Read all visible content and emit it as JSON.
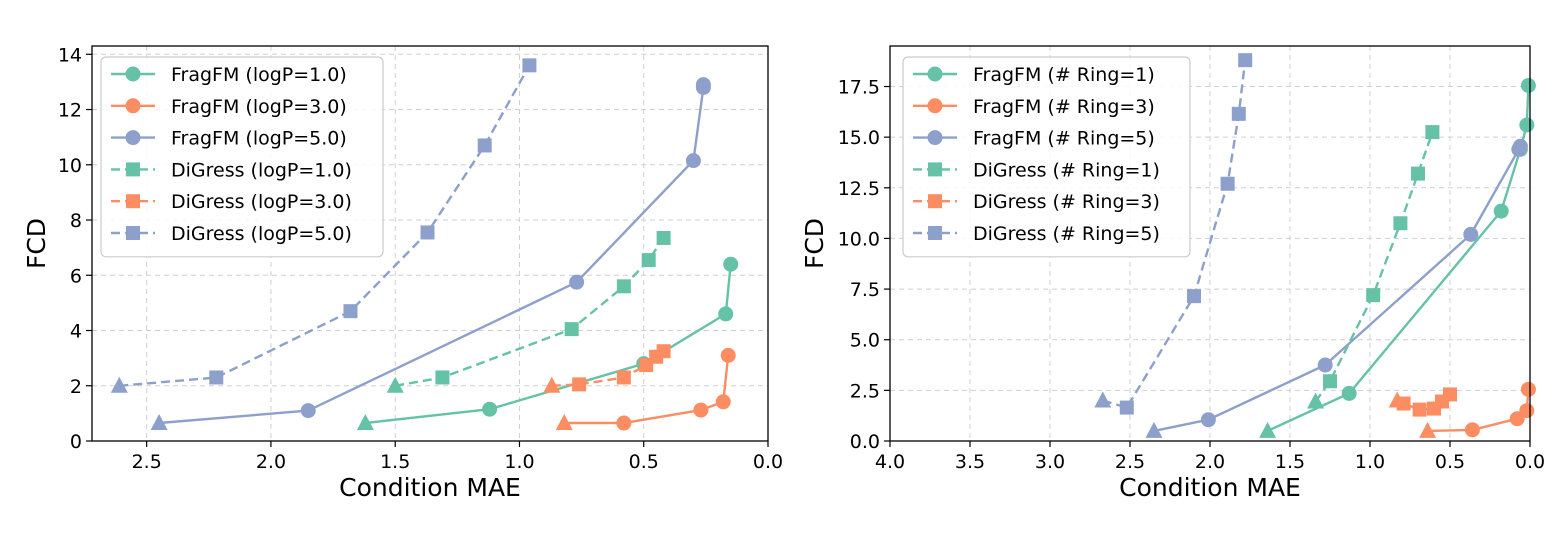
{
  "colors": {
    "green": "#66c2a5",
    "orange": "#fc8d62",
    "blue": "#8da0cb"
  },
  "chart_data": [
    {
      "type": "line",
      "xlabel": "Condition MAE",
      "ylabel": "FCD",
      "xlim": [
        2.72,
        0.0
      ],
      "ylim": [
        0,
        14.3
      ],
      "x_reversed": true,
      "xticks": [
        2.5,
        2.0,
        1.5,
        1.0,
        0.5,
        0.0
      ],
      "xtick_labels": [
        "2.5",
        "2.0",
        "1.5",
        "1.0",
        "0.5",
        "0.0"
      ],
      "yticks": [
        0,
        2,
        4,
        6,
        8,
        10,
        12,
        14
      ],
      "ytick_labels": [
        "0",
        "2",
        "4",
        "6",
        "8",
        "10",
        "12",
        "14"
      ],
      "grid": true,
      "legend_position": "top-left",
      "series": [
        {
          "name": "FragFM (logP=1.0)",
          "color": "#66c2a5",
          "marker": "circle",
          "dash": "solid",
          "start_marker": "triangle",
          "points": [
            [
              1.62,
              0.65
            ],
            [
              1.12,
              1.15
            ],
            [
              0.5,
              2.8
            ],
            [
              0.17,
              4.6
            ],
            [
              0.15,
              6.4
            ]
          ]
        },
        {
          "name": "FragFM (logP=3.0)",
          "color": "#fc8d62",
          "marker": "circle",
          "dash": "solid",
          "start_marker": "triangle",
          "points": [
            [
              0.82,
              0.65
            ],
            [
              0.58,
              0.65
            ],
            [
              0.27,
              1.12
            ],
            [
              0.18,
              1.42
            ],
            [
              0.16,
              3.1
            ]
          ]
        },
        {
          "name": "FragFM (logP=5.0)",
          "color": "#8da0cb",
          "marker": "circle",
          "dash": "solid",
          "start_marker": "triangle",
          "points": [
            [
              2.45,
              0.65
            ],
            [
              1.85,
              1.1
            ],
            [
              0.77,
              5.75
            ],
            [
              0.3,
              10.15
            ],
            [
              0.26,
              12.8
            ],
            [
              0.26,
              12.9
            ]
          ]
        },
        {
          "name": "DiGress (logP=1.0)",
          "color": "#66c2a5",
          "marker": "square",
          "dash": "dashed",
          "start_marker": "triangle",
          "points": [
            [
              1.5,
              2.0
            ],
            [
              1.31,
              2.3
            ],
            [
              0.79,
              4.05
            ],
            [
              0.58,
              5.6
            ],
            [
              0.48,
              6.55
            ],
            [
              0.42,
              7.35
            ]
          ]
        },
        {
          "name": "DiGress (logP=3.0)",
          "color": "#fc8d62",
          "marker": "square",
          "dash": "dashed",
          "start_marker": "triangle",
          "points": [
            [
              0.87,
              2.0
            ],
            [
              0.76,
              2.05
            ],
            [
              0.58,
              2.3
            ],
            [
              0.49,
              2.75
            ],
            [
              0.45,
              3.05
            ],
            [
              0.42,
              3.25
            ]
          ]
        },
        {
          "name": "DiGress (logP=5.0)",
          "color": "#8da0cb",
          "marker": "square",
          "dash": "dashed",
          "start_marker": "triangle",
          "points": [
            [
              2.61,
              2.0
            ],
            [
              2.22,
              2.3
            ],
            [
              1.68,
              4.7
            ],
            [
              1.37,
              7.55
            ],
            [
              1.14,
              10.7
            ],
            [
              0.96,
              13.6
            ]
          ]
        }
      ]
    },
    {
      "type": "line",
      "xlabel": "Condition MAE",
      "ylabel": "FCD",
      "xlim": [
        4.0,
        0.0
      ],
      "ylim": [
        0,
        19.5
      ],
      "x_reversed": true,
      "xticks": [
        4.0,
        3.5,
        3.0,
        2.5,
        2.0,
        1.5,
        1.0,
        0.5,
        0.0
      ],
      "xtick_labels": [
        "4.0",
        "3.5",
        "3.0",
        "2.5",
        "2.0",
        "1.5",
        "1.0",
        "0.5",
        "0.0"
      ],
      "yticks": [
        0,
        2.5,
        5,
        7.5,
        10,
        12.5,
        15,
        17.5
      ],
      "ytick_labels": [
        "0.0",
        "2.5",
        "5.0",
        "7.5",
        "10.0",
        "12.5",
        "15.0",
        "17.5"
      ],
      "grid": true,
      "legend_position": "top-left",
      "series": [
        {
          "name": "FragFM (# Ring=1)",
          "color": "#66c2a5",
          "marker": "circle",
          "dash": "solid",
          "start_marker": "triangle",
          "points": [
            [
              1.64,
              0.5
            ],
            [
              1.13,
              2.35
            ],
            [
              0.18,
              11.35
            ],
            [
              0.06,
              14.4
            ],
            [
              0.02,
              15.6
            ],
            [
              0.01,
              17.55
            ]
          ]
        },
        {
          "name": "FragFM (# Ring=3)",
          "color": "#fc8d62",
          "marker": "circle",
          "dash": "solid",
          "start_marker": "triangle",
          "points": [
            [
              0.64,
              0.5
            ],
            [
              0.36,
              0.55
            ],
            [
              0.08,
              1.1
            ],
            [
              0.02,
              1.5
            ],
            [
              0.01,
              2.55
            ]
          ]
        },
        {
          "name": "FragFM (# Ring=5)",
          "color": "#8da0cb",
          "marker": "circle",
          "dash": "solid",
          "start_marker": "triangle",
          "points": [
            [
              2.35,
              0.5
            ],
            [
              2.01,
              1.05
            ],
            [
              1.28,
              3.75
            ],
            [
              0.37,
              10.2
            ],
            [
              0.07,
              14.4
            ],
            [
              0.06,
              14.55
            ]
          ]
        },
        {
          "name": "DiGress (# Ring=1)",
          "color": "#66c2a5",
          "marker": "square",
          "dash": "dashed",
          "start_marker": "triangle",
          "points": [
            [
              1.34,
              1.95
            ],
            [
              1.25,
              2.95
            ],
            [
              0.98,
              7.2
            ],
            [
              0.81,
              10.75
            ],
            [
              0.7,
              13.2
            ],
            [
              0.61,
              15.25
            ]
          ]
        },
        {
          "name": "DiGress (# Ring=3)",
          "color": "#fc8d62",
          "marker": "square",
          "dash": "dashed",
          "start_marker": "triangle",
          "points": [
            [
              0.83,
              2.0
            ],
            [
              0.79,
              1.85
            ],
            [
              0.69,
              1.55
            ],
            [
              0.6,
              1.6
            ],
            [
              0.55,
              1.95
            ],
            [
              0.5,
              2.3
            ]
          ]
        },
        {
          "name": "DiGress (# Ring=5)",
          "color": "#8da0cb",
          "marker": "square",
          "dash": "dashed",
          "start_marker": "triangle",
          "points": [
            [
              2.67,
              2.0
            ],
            [
              2.52,
              1.65
            ],
            [
              2.1,
              7.15
            ],
            [
              1.89,
              12.7
            ],
            [
              1.82,
              16.15
            ],
            [
              1.78,
              18.8
            ]
          ]
        }
      ]
    }
  ]
}
